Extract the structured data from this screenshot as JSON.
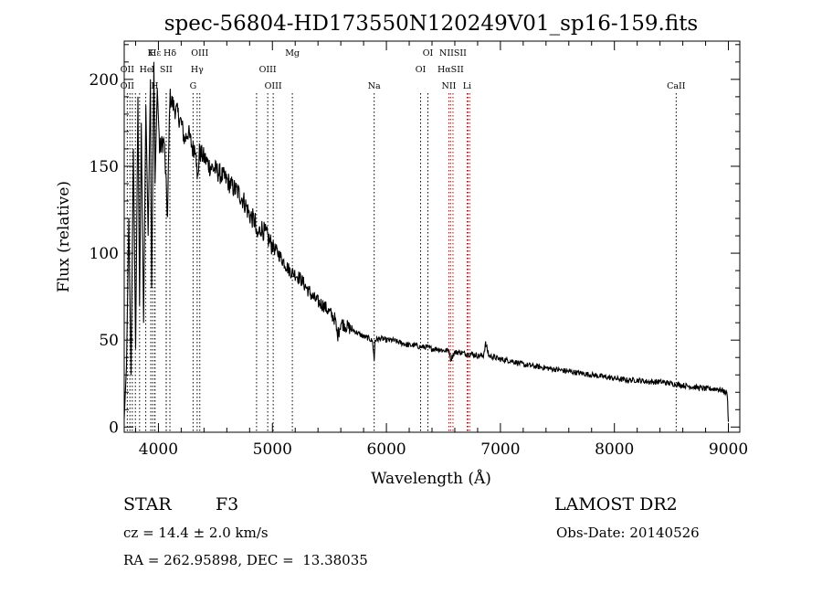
{
  "chart_data": {
    "type": "line",
    "title": "spec-56804-HD173550N120249V01_sp16-159.fits",
    "xlabel": "Wavelength (Å)",
    "ylabel": "Flux (relative)",
    "xlim": [
      3700,
      9100
    ],
    "ylim": [
      -3,
      222
    ],
    "x_ticks": [
      4000,
      5000,
      6000,
      7000,
      8000,
      9000
    ],
    "y_ticks": [
      0,
      50,
      100,
      150,
      200
    ],
    "grid": false,
    "series": [
      {
        "x": [
          3700,
          3720,
          3740,
          3760,
          3780,
          3800,
          3820,
          3835,
          3850,
          3870,
          3890,
          3910,
          3930,
          3940,
          3960,
          3970,
          3990,
          4010,
          4050,
          4080,
          4100,
          4130,
          4170,
          4200,
          4230,
          4260,
          4300,
          4330,
          4340,
          4360,
          4400,
          4450,
          4500,
          4550,
          4600,
          4650,
          4700,
          4750,
          4800,
          4850,
          4861,
          4900,
          4950,
          5000,
          5050,
          5100,
          5150,
          5200,
          5250,
          5300,
          5350,
          5400,
          5450,
          5500,
          5550,
          5570,
          5600,
          5650,
          5700,
          5750,
          5800,
          5850,
          5880,
          5893,
          5900,
          5950,
          6000,
          6050,
          6100,
          6150,
          6200,
          6250,
          6300,
          6350,
          6400,
          6450,
          6500,
          6550,
          6563,
          6600,
          6650,
          6700,
          6750,
          6800,
          6850,
          6870,
          6900,
          6950,
          7000,
          7100,
          7200,
          7300,
          7400,
          7500,
          7600,
          7700,
          7800,
          7900,
          8000,
          8100,
          8200,
          8300,
          8400,
          8500,
          8600,
          8700,
          8800,
          8900,
          8950,
          8990,
          9000
        ],
        "y": [
          5,
          35,
          120,
          30,
          160,
          45,
          190,
          70,
          175,
          60,
          185,
          110,
          200,
          80,
          210,
          140,
          195,
          160,
          165,
          120,
          190,
          185,
          180,
          175,
          165,
          170,
          160,
          162,
          140,
          158,
          155,
          150,
          148,
          145,
          142,
          138,
          135,
          130,
          122,
          118,
          108,
          115,
          110,
          104,
          100,
          95,
          90,
          88,
          85,
          80,
          75,
          72,
          70,
          66,
          62,
          52,
          60,
          58,
          56,
          54,
          52,
          51,
          49,
          38,
          50,
          51,
          50,
          50,
          49,
          48,
          47,
          47,
          46,
          46,
          45,
          45,
          44,
          44,
          39,
          43,
          43,
          42,
          42,
          41,
          41,
          48,
          41,
          40,
          39,
          38,
          36,
          35,
          34,
          33,
          32,
          31,
          30,
          29,
          28,
          27,
          27,
          26,
          26,
          25,
          24,
          23,
          22,
          22,
          21,
          19,
          3
        ]
      }
    ],
    "lines": [
      {
        "label": "Hε",
        "x": 3970,
        "row": 0,
        "color": "#000000"
      },
      {
        "label": "K",
        "x": 3933,
        "row": 0,
        "color": "#000000"
      },
      {
        "label": "Hδ",
        "x": 4101,
        "row": 0,
        "color": "#000000"
      },
      {
        "label": "OIII",
        "x": 4363,
        "row": 0,
        "color": "#000000"
      },
      {
        "label": "Mg",
        "x": 5175,
        "row": 0,
        "color": "#000000"
      },
      {
        "label": "OI",
        "x": 6364,
        "row": 0,
        "color": "#000000"
      },
      {
        "label": "NIISII",
        "x": 6584,
        "row": 0,
        "color": "#cc0000"
      },
      {
        "label": "OII",
        "x": 3727,
        "row": 1,
        "color": "#000000"
      },
      {
        "label": "He",
        "x": 3889,
        "row": 1,
        "color": "#000000"
      },
      {
        "label": "I",
        "x": 3950,
        "row": 1,
        "color": "#000000"
      },
      {
        "label": "SII",
        "x": 4068,
        "row": 1,
        "color": "#000000"
      },
      {
        "label": "Hγ",
        "x": 4340,
        "row": 1,
        "color": "#000000"
      },
      {
        "label": "OIII",
        "x": 4959,
        "row": 1,
        "color": "#000000"
      },
      {
        "label": "OI",
        "x": 6300,
        "row": 1,
        "color": "#000000"
      },
      {
        "label": "HαSII",
        "x": 6563,
        "row": 1,
        "color": "#cc0000"
      },
      {
        "label": "OII",
        "x": 3727,
        "row": 2,
        "color": "#000000"
      },
      {
        "label": "H",
        "x": 3968,
        "row": 2,
        "color": "#000000"
      },
      {
        "label": "G",
        "x": 4304,
        "row": 2,
        "color": "#000000"
      },
      {
        "label": "OIII",
        "x": 5007,
        "row": 2,
        "color": "#000000"
      },
      {
        "label": "Na",
        "x": 5893,
        "row": 2,
        "color": "#000000"
      },
      {
        "label": "NII",
        "x": 6548,
        "row": 2,
        "color": "#cc0000"
      },
      {
        "label": "Li",
        "x": 6708,
        "row": 2,
        "color": "#cc0000"
      },
      {
        "label": "CaII",
        "x": 8542,
        "row": 2,
        "color": "#000000"
      }
    ],
    "extra_lines_x": [
      3750,
      3771,
      3798,
      3835,
      3889,
      4069,
      4861,
      6716,
      6731
    ]
  },
  "info": {
    "class_label": "STAR",
    "subclass": "F3",
    "survey": "LAMOST DR2",
    "cz": "cz = 14.4 ± 2.0 km/s",
    "obs_date": "Obs-Date: 20140526",
    "radec": "RA = 262.95898, DEC =  13.38035"
  }
}
